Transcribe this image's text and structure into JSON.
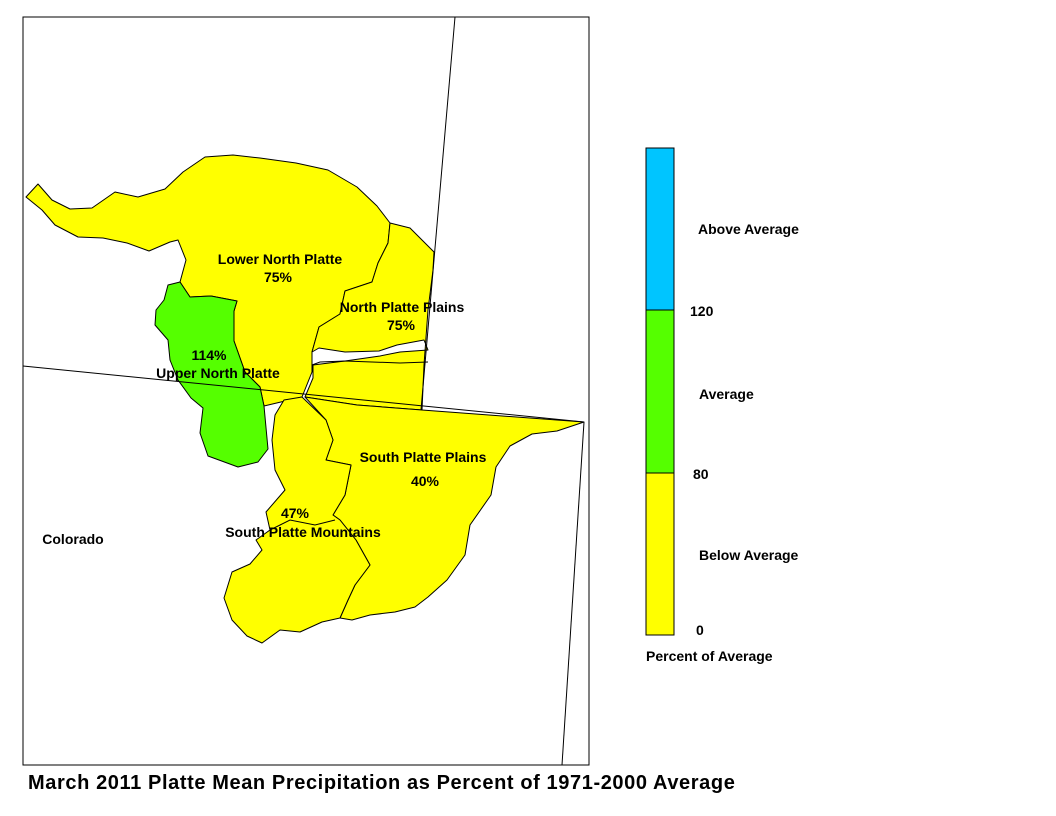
{
  "title": "March 2011 Platte Mean Precipitation as Percent of 1971-2000 Average",
  "state_label": "Colorado",
  "colors": {
    "below_average": "#FFFF00",
    "average": "#55FF00",
    "above_average": "#00C5FF",
    "border": "#000000"
  },
  "basins": [
    {
      "id": "lower-north-platte",
      "name": "Lower North Platte",
      "percent": "75%",
      "category": "below_average"
    },
    {
      "id": "north-platte-plains",
      "name": "North Platte Plains",
      "percent": "75%",
      "category": "below_average"
    },
    {
      "id": "upper-north-platte",
      "name": "Upper North Platte",
      "percent": "114%",
      "category": "average"
    },
    {
      "id": "south-platte-plains",
      "name": "South Platte Plains",
      "percent": "40%",
      "category": "below_average"
    },
    {
      "id": "south-platte-mountains",
      "name": "South Platte Mountains",
      "percent": "47%",
      "category": "below_average"
    }
  ],
  "legend": {
    "caption": "Percent of Average",
    "classes": [
      {
        "label": "Above Average",
        "min": 120,
        "max": null,
        "color": "#00C5FF"
      },
      {
        "label": "Average",
        "min": 80,
        "max": 120,
        "color": "#55FF00"
      },
      {
        "label": "Below Average",
        "min": 0,
        "max": 80,
        "color": "#FFFF00"
      }
    ],
    "ticks": [
      "120",
      "80",
      "0"
    ]
  }
}
